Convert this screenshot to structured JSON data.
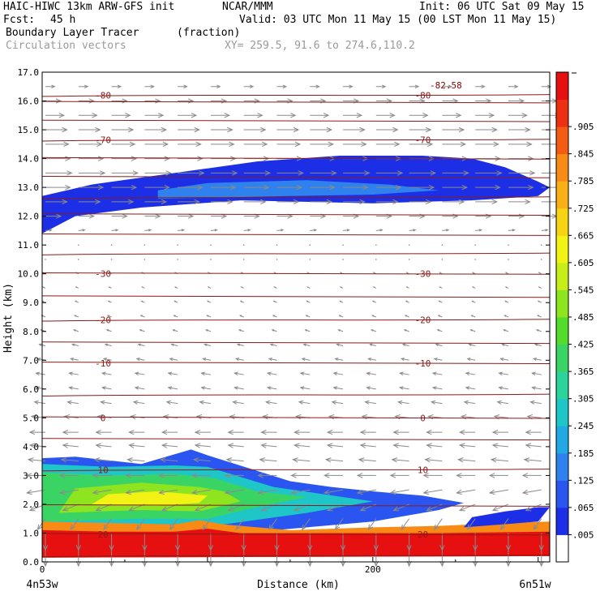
{
  "header": {
    "model": "HAIC-HIWC 13km ARW-GFS init",
    "org": "NCAR/MMM",
    "init": "Init: 06 UTC Sat 09 May 15",
    "fcst_label": "Fcst:",
    "fcst_value": "45 h",
    "valid": "Valid: 03 UTC Mon 11 May 15 (00 LST Mon 11 May 15)",
    "field": "Boundary Layer Tracer",
    "units": "(fraction)",
    "overlay": "Circulation vectors",
    "xy": "XY= 259.5, 91.6 to 274.6,110.2"
  },
  "chart_data": {
    "type": "heatmap",
    "title": "Boundary Layer Tracer",
    "units": "(fraction)",
    "xlabel": "Distance (km)",
    "ylabel": "Height (km)",
    "xlim": [
      0,
      307
    ],
    "ylim": [
      0,
      17
    ],
    "x_ticks": [
      "0",
      "200"
    ],
    "x_tick_values": [
      0,
      200
    ],
    "x_end_labels": [
      "4n53w",
      "6n51w"
    ],
    "y_ticks": [
      "0.0",
      "1.0",
      "2.0",
      "3.0",
      "4.0",
      "5.0",
      "6.0",
      "7.0",
      "8.0",
      "9.0",
      "10.0",
      "11.0",
      "12.0",
      "13.0",
      "14.0",
      "15.0",
      "16.0",
      "17.0"
    ],
    "colorbar": {
      "levels": [
        ".005",
        ".065",
        ".125",
        ".185",
        ".245",
        ".305",
        ".365",
        ".425",
        ".485",
        ".545",
        ".605",
        ".665",
        ".725",
        ".785",
        ".845",
        ".905"
      ],
      "colors": [
        "#ffffff",
        "#1c2fe6",
        "#2a55f0",
        "#2f82ee",
        "#21a9e6",
        "#1ec6c8",
        "#2ad49a",
        "#3ad464",
        "#54dc2c",
        "#8ee41e",
        "#c8ee18",
        "#f2f214",
        "#f6d414",
        "#f8b016",
        "#f88a16",
        "#f45c14",
        "#ee3012",
        "#e61010"
      ]
    },
    "temperature_contours": [
      {
        "height": 0.22,
        "label": ""
      },
      {
        "height": 0.95,
        "label": "20"
      },
      {
        "height": 1.95,
        "label": ""
      },
      {
        "height": 3.2,
        "label": "10"
      },
      {
        "height": 4.25,
        "label": ""
      },
      {
        "height": 5.0,
        "label": "0"
      },
      {
        "height": 5.8,
        "label": ""
      },
      {
        "height": 6.9,
        "label": "-10"
      },
      {
        "height": 7.6,
        "label": ""
      },
      {
        "height": 8.4,
        "label": "-20"
      },
      {
        "height": 9.2,
        "label": ""
      },
      {
        "height": 10.0,
        "label": "-30"
      },
      {
        "height": 10.7,
        "label": ""
      },
      {
        "height": 11.35,
        "label": ""
      },
      {
        "height": 12.05,
        "label": ""
      },
      {
        "height": 12.65,
        "label": ""
      },
      {
        "height": 13.35,
        "label": ""
      },
      {
        "height": 14.0,
        "label": ""
      },
      {
        "height": 14.65,
        "label": "-70"
      },
      {
        "height": 15.3,
        "label": ""
      },
      {
        "height": 15.95,
        "label": ""
      },
      {
        "height": 16.2,
        "label": "-80"
      }
    ],
    "min_label": "-82.58",
    "blobs": [
      {
        "level": "blue",
        "points": [
          [
            0,
            11.4
          ],
          [
            20,
            12.0
          ],
          [
            60,
            12.3
          ],
          [
            120,
            12.55
          ],
          [
            200,
            12.45
          ],
          [
            260,
            12.55
          ],
          [
            300,
            12.7
          ],
          [
            307,
            13.0
          ],
          [
            300,
            13.2
          ],
          [
            280,
            13.7
          ],
          [
            260,
            14.0
          ],
          [
            230,
            14.1
          ],
          [
            180,
            14.1
          ],
          [
            130,
            13.9
          ],
          [
            80,
            13.5
          ],
          [
            30,
            13.1
          ],
          [
            0,
            12.7
          ]
        ]
      },
      {
        "level": "lightblue",
        "points": [
          [
            70,
            12.6
          ],
          [
            150,
            12.7
          ],
          [
            200,
            12.75
          ],
          [
            240,
            12.9
          ],
          [
            210,
            13.1
          ],
          [
            160,
            13.25
          ],
          [
            100,
            13.15
          ],
          [
            70,
            12.9
          ]
        ]
      },
      {
        "level": "low_blue",
        "points": [
          [
            0,
            0.8
          ],
          [
            60,
            0.9
          ],
          [
            120,
            1.0
          ],
          [
            200,
            1.4
          ],
          [
            240,
            1.8
          ],
          [
            255,
            2.05
          ],
          [
            230,
            2.3
          ],
          [
            200,
            2.45
          ],
          [
            175,
            2.6
          ],
          [
            150,
            2.8
          ],
          [
            125,
            3.25
          ],
          [
            100,
            3.7
          ],
          [
            90,
            3.9
          ],
          [
            60,
            3.4
          ],
          [
            20,
            3.65
          ],
          [
            0,
            3.6
          ]
        ]
      },
      {
        "level": "cyan",
        "points": [
          [
            0,
            1.2
          ],
          [
            60,
            1.3
          ],
          [
            110,
            1.3
          ],
          [
            160,
            1.7
          ],
          [
            200,
            2.1
          ],
          [
            170,
            2.35
          ],
          [
            140,
            2.6
          ],
          [
            120,
            2.95
          ],
          [
            100,
            3.3
          ],
          [
            80,
            3.35
          ],
          [
            40,
            3.3
          ],
          [
            0,
            3.4
          ]
        ]
      },
      {
        "level": "green",
        "points": [
          [
            0,
            1.4
          ],
          [
            60,
            1.5
          ],
          [
            100,
            1.5
          ],
          [
            130,
            1.9
          ],
          [
            160,
            2.25
          ],
          [
            130,
            2.45
          ],
          [
            105,
            2.9
          ],
          [
            80,
            3.05
          ],
          [
            40,
            3.0
          ],
          [
            0,
            3.1
          ]
        ]
      },
      {
        "level": "yellowgreen",
        "points": [
          [
            10,
            1.7
          ],
          [
            60,
            1.8
          ],
          [
            95,
            1.75
          ],
          [
            120,
            2.1
          ],
          [
            110,
            2.45
          ],
          [
            95,
            2.6
          ],
          [
            60,
            2.75
          ],
          [
            20,
            2.55
          ]
        ]
      },
      {
        "level": "yellow",
        "points": [
          [
            30,
            2.0
          ],
          [
            70,
            1.95
          ],
          [
            95,
            2.05
          ],
          [
            100,
            2.3
          ],
          [
            70,
            2.45
          ],
          [
            40,
            2.35
          ]
        ]
      },
      {
        "level": "surface_orange",
        "points": [
          [
            0,
            0.15
          ],
          [
            307,
            0.2
          ],
          [
            307,
            1.4
          ],
          [
            280,
            1.35
          ],
          [
            240,
            1.25
          ],
          [
            200,
            1.2
          ],
          [
            150,
            1.1
          ],
          [
            110,
            1.3
          ],
          [
            95,
            1.45
          ],
          [
            80,
            1.3
          ],
          [
            40,
            1.35
          ],
          [
            0,
            1.4
          ]
        ]
      },
      {
        "level": "surface_red",
        "points": [
          [
            0,
            0.15
          ],
          [
            307,
            0.2
          ],
          [
            307,
            1.05
          ],
          [
            240,
            1.0
          ],
          [
            180,
            1.0
          ],
          [
            120,
            1.0
          ],
          [
            100,
            1.15
          ],
          [
            80,
            1.05
          ],
          [
            40,
            1.05
          ],
          [
            0,
            1.1
          ]
        ]
      },
      {
        "level": "right_blue",
        "points": [
          [
            255,
            1.2
          ],
          [
            300,
            1.4
          ],
          [
            307,
            1.9
          ],
          [
            300,
            1.9
          ],
          [
            280,
            1.75
          ],
          [
            260,
            1.55
          ]
        ]
      }
    ],
    "vectors": {
      "x_stations": [
        0,
        20,
        40,
        60,
        80,
        100,
        120,
        140,
        160,
        180,
        200,
        220,
        240,
        260,
        280,
        300
      ],
      "levels": [
        {
          "z": 0.5,
          "u": 0.0,
          "w": -0.6
        },
        {
          "z": 1.0,
          "u": 0.0,
          "w": -0.55
        },
        {
          "z": 1.5,
          "u": -0.25,
          "w": -0.35
        },
        {
          "z": 2.0,
          "u": -0.5,
          "w": -0.2
        },
        {
          "z": 2.5,
          "u": -0.6,
          "w": -0.1
        },
        {
          "z": 3.0,
          "u": -0.6,
          "w": 0.0
        },
        {
          "z": 3.5,
          "u": -0.55,
          "w": 0.05
        },
        {
          "z": 4.0,
          "u": -0.5,
          "w": 0.05
        },
        {
          "z": 4.5,
          "u": -0.5,
          "w": 0.0
        },
        {
          "z": 5.0,
          "u": -0.45,
          "w": 0.05
        },
        {
          "z": 5.5,
          "u": -0.35,
          "w": 0.05
        },
        {
          "z": 6.0,
          "u": -0.3,
          "w": 0.05
        },
        {
          "z": 6.5,
          "u": -0.3,
          "w": 0.05
        },
        {
          "z": 7.0,
          "u": -0.25,
          "w": 0.05
        },
        {
          "z": 7.5,
          "u": -0.2,
          "w": 0.05
        },
        {
          "z": 8.0,
          "u": -0.15,
          "w": 0.05
        },
        {
          "z": 8.5,
          "u": -0.12,
          "w": 0.05
        },
        {
          "z": 9.0,
          "u": -0.1,
          "w": 0.05
        },
        {
          "z": 9.5,
          "u": -0.08,
          "w": 0.04
        },
        {
          "z": 10.0,
          "u": -0.08,
          "w": 0.04
        },
        {
          "z": 10.5,
          "u": 0.0,
          "w": 0.06
        },
        {
          "z": 11.0,
          "u": 0.05,
          "w": 0.04
        },
        {
          "z": 11.5,
          "u": 0.2,
          "w": 0.02
        },
        {
          "z": 12.0,
          "u": 0.5,
          "w": 0.0
        },
        {
          "z": 12.5,
          "u": 0.7,
          "w": 0.0
        },
        {
          "z": 13.0,
          "u": 0.8,
          "w": 0.0
        },
        {
          "z": 13.5,
          "u": 0.85,
          "w": 0.0
        },
        {
          "z": 14.0,
          "u": 0.8,
          "w": 0.0
        },
        {
          "z": 14.5,
          "u": 0.75,
          "w": 0.0
        },
        {
          "z": 15.0,
          "u": 0.7,
          "w": 0.0
        },
        {
          "z": 15.5,
          "u": 0.6,
          "w": 0.0
        },
        {
          "z": 16.0,
          "u": 0.5,
          "w": 0.0
        },
        {
          "z": 16.5,
          "u": 0.3,
          "w": 0.0
        }
      ]
    }
  }
}
